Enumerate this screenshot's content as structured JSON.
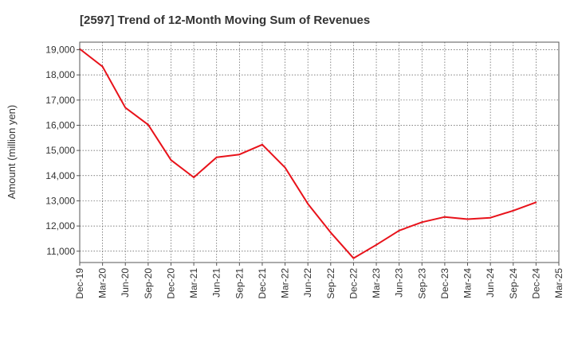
{
  "chart_data": {
    "type": "line",
    "title": "[2597]  Trend of 12-Month Moving Sum of Revenues",
    "ylabel": "Amount (million yen)",
    "xlabel": "",
    "grid": true,
    "x_ticks": [
      "Dec-19",
      "Mar-20",
      "Jun-20",
      "Sep-20",
      "Dec-20",
      "Mar-21",
      "Jun-21",
      "Sep-21",
      "Dec-21",
      "Mar-22",
      "Jun-22",
      "Sep-22",
      "Dec-22",
      "Mar-23",
      "Jun-23",
      "Sep-23",
      "Dec-23",
      "Mar-24",
      "Jun-24",
      "Sep-24",
      "Dec-24",
      "Mar-25"
    ],
    "y_ticks": [
      11000,
      12000,
      13000,
      14000,
      15000,
      16000,
      17000,
      18000,
      19000
    ],
    "y_tick_labels": [
      "11,000",
      "12,000",
      "13,000",
      "14,000",
      "15,000",
      "16,000",
      "17,000",
      "18,000",
      "19,000"
    ],
    "ylim": [
      10550,
      19300
    ],
    "series": [
      {
        "color": "#e8121a",
        "x": [
          "Dec-19",
          "Mar-20",
          "Jun-20",
          "Sep-20",
          "Dec-20",
          "Mar-21",
          "Jun-21",
          "Sep-21",
          "Dec-21",
          "Mar-22",
          "Jun-22",
          "Sep-22",
          "Dec-22",
          "Mar-23",
          "Jun-23",
          "Sep-23",
          "Dec-23",
          "Mar-24",
          "Jun-24",
          "Sep-24",
          "Dec-24"
        ],
        "values": [
          19030,
          18330,
          16700,
          16020,
          14620,
          13930,
          14730,
          14840,
          15230,
          14320,
          12880,
          11740,
          10720,
          11250,
          11820,
          12150,
          12360,
          12270,
          12330,
          12610,
          12940
        ]
      }
    ]
  }
}
